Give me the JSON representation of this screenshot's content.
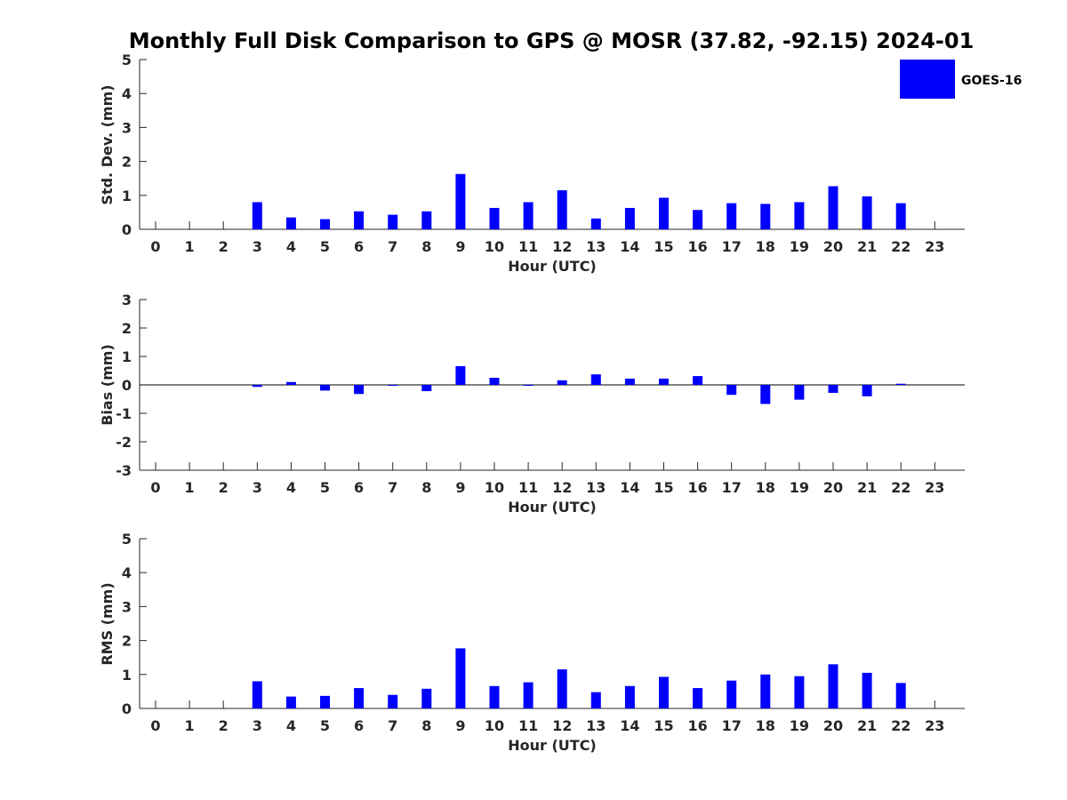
{
  "figure": {
    "title": "Monthly Full Disk Comparison to GPS @ MOSR (37.82, -92.15) 2024-01"
  },
  "legend": {
    "label": "GOES-16",
    "color": "#0000ff",
    "placement": "top-right"
  },
  "chart_data": [
    {
      "type": "bar",
      "xlabel": "Hour (UTC)",
      "ylabel": "Std. Dev. (mm)",
      "categories": [
        "0",
        "1",
        "2",
        "3",
        "4",
        "5",
        "6",
        "7",
        "8",
        "9",
        "10",
        "11",
        "12",
        "13",
        "14",
        "15",
        "16",
        "17",
        "18",
        "19",
        "20",
        "21",
        "22",
        "23"
      ],
      "yticks": [
        "0",
        "1",
        "2",
        "3",
        "4",
        "5"
      ],
      "ylim": [
        0,
        5
      ],
      "grid": false,
      "series": [
        {
          "name": "GOES-16",
          "values": [
            null,
            null,
            null,
            0.8,
            0.35,
            0.3,
            0.53,
            0.43,
            0.53,
            1.63,
            0.63,
            0.8,
            1.15,
            0.32,
            0.63,
            0.93,
            0.57,
            0.77,
            0.75,
            0.8,
            1.27,
            0.97,
            0.77,
            null
          ]
        }
      ]
    },
    {
      "type": "bar",
      "xlabel": "Hour (UTC)",
      "ylabel": "Bias (mm)",
      "categories": [
        "0",
        "1",
        "2",
        "3",
        "4",
        "5",
        "6",
        "7",
        "8",
        "9",
        "10",
        "11",
        "12",
        "13",
        "14",
        "15",
        "16",
        "17",
        "18",
        "19",
        "20",
        "21",
        "22",
        "23"
      ],
      "yticks": [
        "-3",
        "-2",
        "-1",
        "0",
        "1",
        "2",
        "3"
      ],
      "ylim": [
        -3,
        3
      ],
      "grid": false,
      "zero_line": true,
      "series": [
        {
          "name": "GOES-16",
          "values": [
            null,
            null,
            null,
            -0.07,
            0.1,
            -0.2,
            -0.32,
            -0.02,
            -0.22,
            0.66,
            0.25,
            0.0,
            0.16,
            0.37,
            0.22,
            0.22,
            0.31,
            -0.35,
            -0.67,
            -0.52,
            -0.28,
            -0.4,
            0.04,
            null
          ]
        }
      ]
    },
    {
      "type": "bar",
      "xlabel": "Hour (UTC)",
      "ylabel": "RMS (mm)",
      "categories": [
        "0",
        "1",
        "2",
        "3",
        "4",
        "5",
        "6",
        "7",
        "8",
        "9",
        "10",
        "11",
        "12",
        "13",
        "14",
        "15",
        "16",
        "17",
        "18",
        "19",
        "20",
        "21",
        "22",
        "23"
      ],
      "yticks": [
        "0",
        "1",
        "2",
        "3",
        "4",
        "5"
      ],
      "ylim": [
        0,
        5
      ],
      "grid": false,
      "series": [
        {
          "name": "GOES-16",
          "values": [
            null,
            null,
            null,
            0.8,
            0.35,
            0.37,
            0.6,
            0.4,
            0.58,
            1.77,
            0.66,
            0.77,
            1.15,
            0.48,
            0.66,
            0.93,
            0.6,
            0.82,
            1.0,
            0.95,
            1.3,
            1.05,
            0.75,
            null
          ]
        }
      ]
    }
  ]
}
